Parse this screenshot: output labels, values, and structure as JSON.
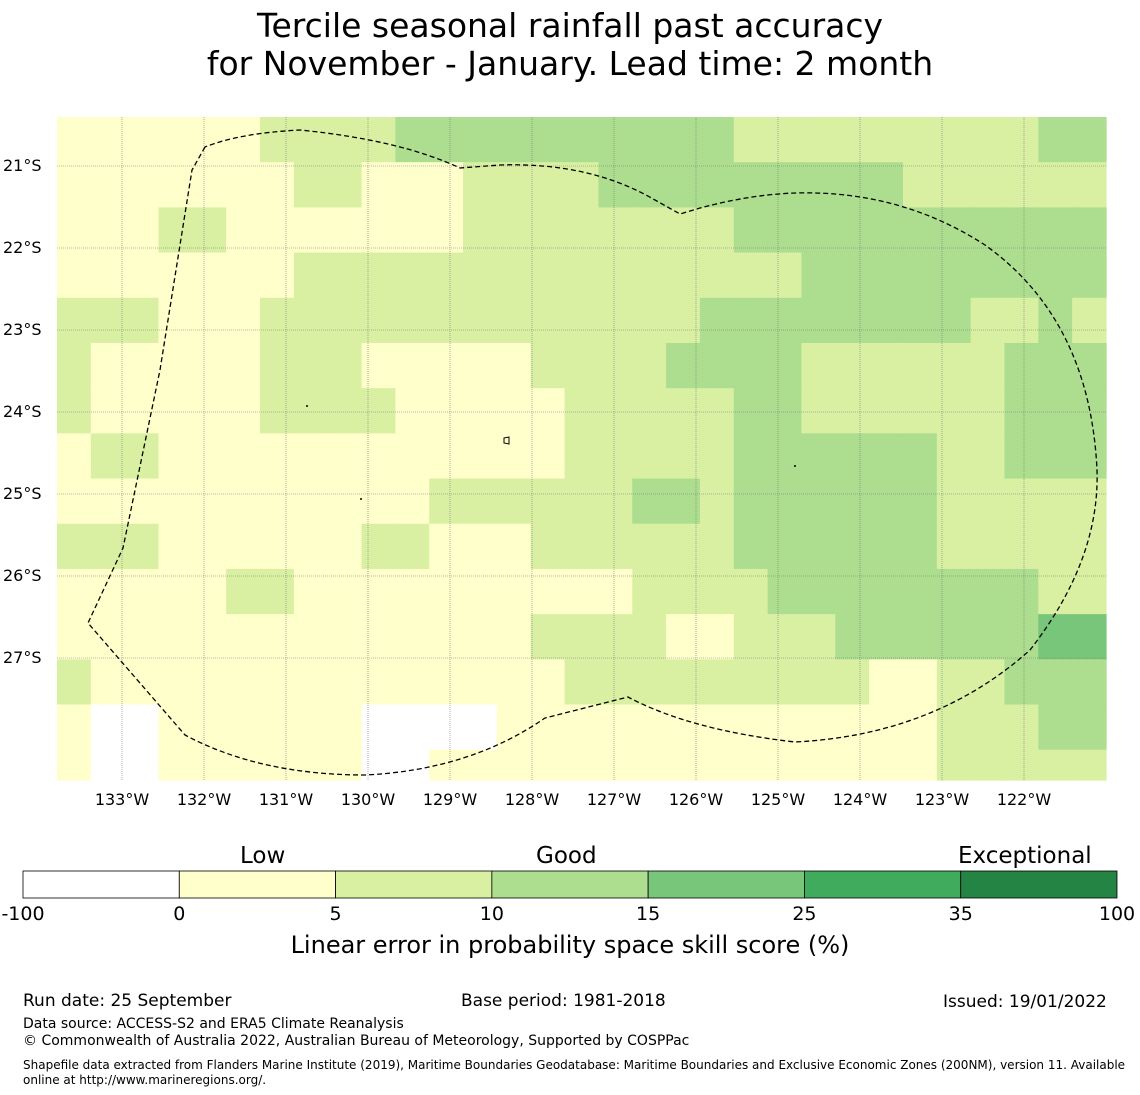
{
  "title": {
    "line1": "Tercile seasonal rainfall past accuracy",
    "line2": "for November - January. Lead time: 2 month"
  },
  "map": {
    "lat_labels": [
      "21°S",
      "22°S",
      "23°S",
      "24°S",
      "25°S",
      "26°S",
      "27°S"
    ],
    "lon_labels": [
      "133°W",
      "132°W",
      "131°W",
      "130°W",
      "129°W",
      "128°W",
      "127°W",
      "126°W",
      "125°W",
      "124°W",
      "123°W",
      "122°W"
    ],
    "grid_legend": "0=-100..0 (white), 1=0..5, 2=5..10, 3=10..15, 4=15..25",
    "grid": [
      [
        1,
        1,
        1,
        1,
        1,
        1,
        2,
        2,
        2,
        2,
        3,
        3,
        3,
        3,
        3,
        3,
        3,
        3,
        3,
        3,
        2,
        2,
        2,
        2,
        2,
        2,
        2,
        2,
        2,
        3,
        3
      ],
      [
        1,
        1,
        1,
        1,
        1,
        1,
        1,
        2,
        2,
        1,
        1,
        1,
        2,
        2,
        2,
        2,
        3,
        3,
        3,
        3,
        3,
        3,
        3,
        3,
        3,
        2,
        2,
        2,
        2,
        2,
        2
      ],
      [
        1,
        1,
        1,
        2,
        2,
        1,
        1,
        1,
        1,
        1,
        1,
        1,
        2,
        2,
        2,
        2,
        2,
        2,
        2,
        2,
        3,
        3,
        3,
        3,
        3,
        3,
        3,
        3,
        3,
        3,
        3
      ],
      [
        1,
        1,
        1,
        1,
        1,
        1,
        1,
        2,
        2,
        2,
        2,
        2,
        2,
        2,
        2,
        2,
        2,
        2,
        2,
        2,
        2,
        2,
        3,
        3,
        3,
        3,
        3,
        3,
        3,
        3,
        3
      ],
      [
        2,
        2,
        2,
        1,
        1,
        1,
        2,
        2,
        2,
        2,
        2,
        2,
        2,
        2,
        2,
        2,
        2,
        2,
        2,
        3,
        3,
        3,
        3,
        3,
        3,
        3,
        3,
        2,
        2,
        3,
        2
      ],
      [
        2,
        1,
        1,
        1,
        1,
        1,
        2,
        2,
        2,
        1,
        1,
        1,
        1,
        1,
        2,
        2,
        2,
        2,
        3,
        3,
        3,
        3,
        2,
        2,
        2,
        2,
        2,
        2,
        3,
        3,
        3
      ],
      [
        2,
        1,
        1,
        1,
        1,
        1,
        2,
        2,
        2,
        2,
        1,
        1,
        1,
        1,
        1,
        2,
        2,
        2,
        2,
        2,
        3,
        3,
        2,
        2,
        2,
        2,
        2,
        2,
        3,
        3,
        3
      ],
      [
        1,
        2,
        2,
        1,
        1,
        1,
        1,
        1,
        1,
        1,
        1,
        1,
        1,
        1,
        1,
        2,
        2,
        2,
        2,
        2,
        3,
        3,
        3,
        3,
        3,
        3,
        2,
        2,
        3,
        3,
        3
      ],
      [
        1,
        1,
        1,
        1,
        1,
        1,
        1,
        1,
        1,
        1,
        1,
        2,
        2,
        2,
        2,
        2,
        2,
        3,
        3,
        2,
        3,
        3,
        3,
        3,
        3,
        3,
        2,
        2,
        2,
        2,
        2
      ],
      [
        2,
        2,
        2,
        1,
        1,
        1,
        1,
        1,
        1,
        2,
        2,
        1,
        1,
        1,
        2,
        2,
        2,
        2,
        2,
        2,
        3,
        3,
        3,
        3,
        3,
        3,
        2,
        2,
        2,
        2,
        2
      ],
      [
        1,
        1,
        1,
        1,
        1,
        2,
        2,
        1,
        1,
        1,
        1,
        1,
        1,
        1,
        1,
        1,
        1,
        2,
        2,
        2,
        2,
        3,
        3,
        3,
        3,
        3,
        3,
        3,
        3,
        2,
        2
      ],
      [
        1,
        1,
        1,
        1,
        1,
        1,
        1,
        1,
        1,
        1,
        1,
        1,
        1,
        1,
        2,
        2,
        2,
        2,
        1,
        1,
        2,
        2,
        2,
        3,
        3,
        3,
        3,
        3,
        3,
        4,
        4
      ],
      [
        2,
        1,
        1,
        1,
        1,
        1,
        1,
        1,
        1,
        1,
        1,
        1,
        1,
        1,
        1,
        2,
        2,
        2,
        2,
        2,
        2,
        2,
        2,
        2,
        1,
        1,
        2,
        2,
        3,
        3,
        3
      ],
      [
        1,
        0,
        0,
        1,
        1,
        1,
        1,
        1,
        1,
        0,
        0,
        0,
        0,
        1,
        1,
        1,
        1,
        1,
        1,
        1,
        1,
        1,
        1,
        1,
        1,
        1,
        2,
        2,
        2,
        3,
        3
      ],
      [
        1,
        0,
        0,
        1,
        1,
        1,
        1,
        1,
        1,
        0,
        0,
        1,
        1,
        1,
        1,
        1,
        1,
        1,
        1,
        1,
        1,
        1,
        1,
        1,
        1,
        1,
        2,
        2,
        2,
        2,
        2
      ]
    ]
  },
  "colorbar": {
    "categories": [
      "Low",
      "Good",
      "Exceptional"
    ],
    "ticks": [
      "-100",
      "0",
      "5",
      "10",
      "15",
      "25",
      "35",
      "100"
    ],
    "colors": [
      "#ffffff",
      "#ffffcc",
      "#d9f0a3",
      "#addd8e",
      "#78c679",
      "#41ab5d",
      "#238443"
    ],
    "title": "Linear error in probability space skill score (%)"
  },
  "footer": {
    "run_date": "Run date: 25 September",
    "base_period": "Base period: 1981-2018",
    "issued": "Issued: 19/01/2022",
    "data_source": "Data source: ACCESS-S2 and ERA5 Climate Reanalysis",
    "copyright": "© Commonwealth of Australia 2022, Australian Bureau of Meteorology, Supported by COSPPac",
    "shapefile": "Shapefile data extracted from Flanders Marine Institute (2019), Maritime Boundaries Geodatabase: Maritime Boundaries and Exclusive Economic Zones (200NM), version 11. Available online at http://www.marineregions.org/."
  }
}
